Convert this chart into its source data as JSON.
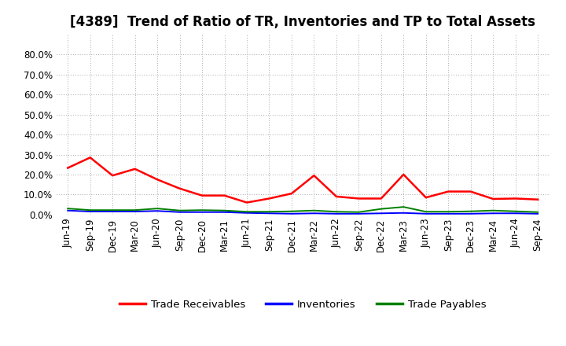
{
  "title": "[4389]  Trend of Ratio of TR, Inventories and TP to Total Assets",
  "x_labels": [
    "Jun-19",
    "Sep-19",
    "Dec-19",
    "Mar-20",
    "Jun-20",
    "Sep-20",
    "Dec-20",
    "Mar-21",
    "Jun-21",
    "Sep-21",
    "Dec-21",
    "Mar-22",
    "Jun-22",
    "Sep-22",
    "Dec-22",
    "Mar-23",
    "Jun-23",
    "Sep-23",
    "Dec-23",
    "Mar-24",
    "Jun-24",
    "Sep-24"
  ],
  "trade_receivables": [
    0.233,
    0.285,
    0.195,
    0.228,
    0.175,
    0.13,
    0.095,
    0.095,
    0.06,
    0.08,
    0.105,
    0.195,
    0.09,
    0.08,
    0.08,
    0.2,
    0.085,
    0.115,
    0.115,
    0.078,
    0.08,
    0.075
  ],
  "inventories": [
    0.02,
    0.015,
    0.015,
    0.015,
    0.018,
    0.012,
    0.012,
    0.012,
    0.008,
    0.006,
    0.004,
    0.006,
    0.004,
    0.004,
    0.006,
    0.008,
    0.004,
    0.004,
    0.004,
    0.006,
    0.006,
    0.004
  ],
  "trade_payables": [
    0.03,
    0.022,
    0.022,
    0.022,
    0.03,
    0.02,
    0.022,
    0.02,
    0.014,
    0.014,
    0.016,
    0.02,
    0.014,
    0.012,
    0.028,
    0.038,
    0.014,
    0.014,
    0.016,
    0.02,
    0.016,
    0.012
  ],
  "tr_color": "#FF0000",
  "inv_color": "#0000FF",
  "tp_color": "#008000",
  "ylim": [
    0.0,
    0.9
  ],
  "yticks": [
    0.0,
    0.1,
    0.2,
    0.3,
    0.4,
    0.5,
    0.6,
    0.7,
    0.8
  ],
  "grid_color": "#aaaaaa",
  "background_color": "#ffffff",
  "legend_tr": "Trade Receivables",
  "legend_inv": "Inventories",
  "legend_tp": "Trade Payables",
  "title_fontsize": 12,
  "axis_fontsize": 8.5,
  "legend_fontsize": 9.5
}
